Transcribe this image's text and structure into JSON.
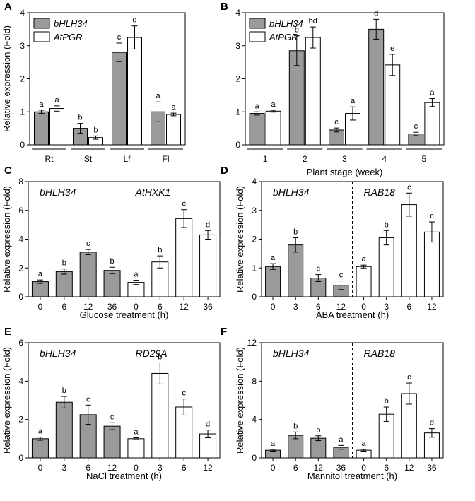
{
  "colors": {
    "gray_bar": "#9a9a9a",
    "white_bar": "#ffffff",
    "stroke": "#000000"
  },
  "chart_data": [
    {
      "id": "A",
      "type": "bar",
      "panel_label": "A",
      "ylabel": "Relative expression (Fold)",
      "xlabel": "",
      "ylim": [
        0,
        4
      ],
      "yticks": [
        "0",
        "1",
        "2",
        "3",
        "4"
      ],
      "legend": [
        "bHLH34",
        "AtPGR"
      ],
      "legend_placement": "top-left",
      "categories": [
        "Rt",
        "St",
        "Lf",
        "Fl"
      ],
      "series": [
        {
          "name": "bHLH34",
          "values": [
            1.0,
            0.5,
            2.8,
            1.0
          ],
          "errors": [
            0.05,
            0.15,
            0.28,
            0.3
          ],
          "sig": [
            "a",
            "b",
            "c",
            "a"
          ]
        },
        {
          "name": "AtPGR",
          "values": [
            1.1,
            0.22,
            3.25,
            0.92
          ],
          "errors": [
            0.08,
            0.05,
            0.35,
            0.04
          ],
          "sig": [
            "a",
            "b",
            "d",
            "a"
          ]
        }
      ]
    },
    {
      "id": "B",
      "type": "bar",
      "panel_label": "B",
      "ylabel": "",
      "xlabel": "Plant stage (week)",
      "ylim": [
        0,
        4
      ],
      "yticks": [
        "0",
        "1",
        "2",
        "3",
        "4"
      ],
      "legend": [
        "bHLH34",
        "AtPGR"
      ],
      "legend_placement": "top-left",
      "categories": [
        "1",
        "2",
        "3",
        "4",
        "5"
      ],
      "series": [
        {
          "name": "bHLH34",
          "values": [
            0.95,
            2.85,
            0.45,
            3.5,
            0.33
          ],
          "errors": [
            0.05,
            0.45,
            0.06,
            0.3,
            0.05
          ],
          "sig": [
            "a",
            "b",
            "c",
            "d",
            "c"
          ]
        },
        {
          "name": "AtPGR",
          "values": [
            1.02,
            3.25,
            0.95,
            2.42,
            1.28
          ],
          "errors": [
            0.03,
            0.32,
            0.2,
            0.32,
            0.12
          ],
          "sig": [
            "a",
            "bd",
            "a",
            "e",
            "a"
          ]
        }
      ]
    },
    {
      "id": "C",
      "type": "bar",
      "panel_label": "C",
      "ylabel": "Relative expression (Fold)",
      "xlabel": "Glucose treatment (h)",
      "ylim": [
        0,
        8
      ],
      "yticks": [
        "0",
        "2",
        "4",
        "6",
        "8"
      ],
      "groups": [
        {
          "gene": "bHLH34",
          "fill": "gray",
          "categories": [
            "0",
            "6",
            "12",
            "36"
          ],
          "values": [
            1.05,
            1.75,
            3.1,
            1.83
          ],
          "errors": [
            0.12,
            0.18,
            0.18,
            0.22
          ],
          "sig": [
            "a",
            "b",
            "c",
            "b"
          ]
        },
        {
          "gene": "AtHXK1",
          "fill": "white",
          "categories": [
            "0",
            "6",
            "12",
            "36"
          ],
          "values": [
            1.0,
            2.42,
            5.43,
            4.3
          ],
          "errors": [
            0.15,
            0.42,
            0.62,
            0.3
          ],
          "sig": [
            "a",
            "b",
            "c",
            "d"
          ]
        }
      ]
    },
    {
      "id": "D",
      "type": "bar",
      "panel_label": "D",
      "ylabel": "Relative expression (Fold)",
      "xlabel": "ABA treatment (h)",
      "ylim": [
        0,
        4
      ],
      "yticks": [
        "0",
        "1",
        "2",
        "3",
        "4"
      ],
      "groups": [
        {
          "gene": "bHLH34",
          "fill": "gray",
          "categories": [
            "0",
            "3",
            "6",
            "12"
          ],
          "values": [
            1.05,
            1.8,
            0.65,
            0.4
          ],
          "errors": [
            0.1,
            0.25,
            0.12,
            0.15
          ],
          "sig": [
            "a",
            "b",
            "c",
            "c"
          ]
        },
        {
          "gene": "RAB18",
          "fill": "white",
          "categories": [
            "0",
            "3",
            "6",
            "12"
          ],
          "values": [
            1.05,
            2.05,
            3.2,
            2.25
          ],
          "errors": [
            0.05,
            0.25,
            0.4,
            0.35
          ],
          "sig": [
            "a",
            "b",
            "c",
            "c"
          ]
        }
      ]
    },
    {
      "id": "E",
      "type": "bar",
      "panel_label": "E",
      "ylabel": "Relative expression (Fold)",
      "xlabel": "NaCl treatment (h)",
      "ylim": [
        0,
        6
      ],
      "yticks": [
        "0",
        "2",
        "4",
        "6"
      ],
      "groups": [
        {
          "gene": "bHLH34",
          "fill": "gray",
          "categories": [
            "0",
            "3",
            "6",
            "12"
          ],
          "values": [
            1.0,
            2.9,
            2.25,
            1.65
          ],
          "errors": [
            0.08,
            0.3,
            0.5,
            0.18
          ],
          "sig": [
            "a",
            "b",
            "c",
            "c"
          ]
        },
        {
          "gene": "RD29A",
          "fill": "white",
          "categories": [
            "0",
            "3",
            "6",
            "12"
          ],
          "values": [
            1.0,
            4.4,
            2.65,
            1.25
          ],
          "errors": [
            0.05,
            0.55,
            0.42,
            0.2
          ],
          "sig": [
            "a",
            "b",
            "c",
            "d"
          ]
        }
      ]
    },
    {
      "id": "F",
      "type": "bar",
      "panel_label": "F",
      "ylabel": "Relative expression (Fold)",
      "xlabel": "Mannitol treatment (h)",
      "ylim": [
        0,
        12
      ],
      "yticks": [
        "0",
        "4",
        "8",
        "12"
      ],
      "groups": [
        {
          "gene": "bHLH34",
          "fill": "gray",
          "categories": [
            "0",
            "6",
            "12",
            "36"
          ],
          "values": [
            0.8,
            2.35,
            2.05,
            1.1
          ],
          "errors": [
            0.1,
            0.35,
            0.25,
            0.2
          ],
          "sig": [
            "a",
            "b",
            "b",
            "a"
          ]
        },
        {
          "gene": "RAB18",
          "fill": "white",
          "categories": [
            "0",
            "6",
            "12",
            "36"
          ],
          "values": [
            0.8,
            4.55,
            6.7,
            2.6
          ],
          "errors": [
            0.1,
            0.75,
            1.1,
            0.45
          ],
          "sig": [
            "a",
            "b",
            "c",
            "d"
          ]
        }
      ]
    }
  ]
}
